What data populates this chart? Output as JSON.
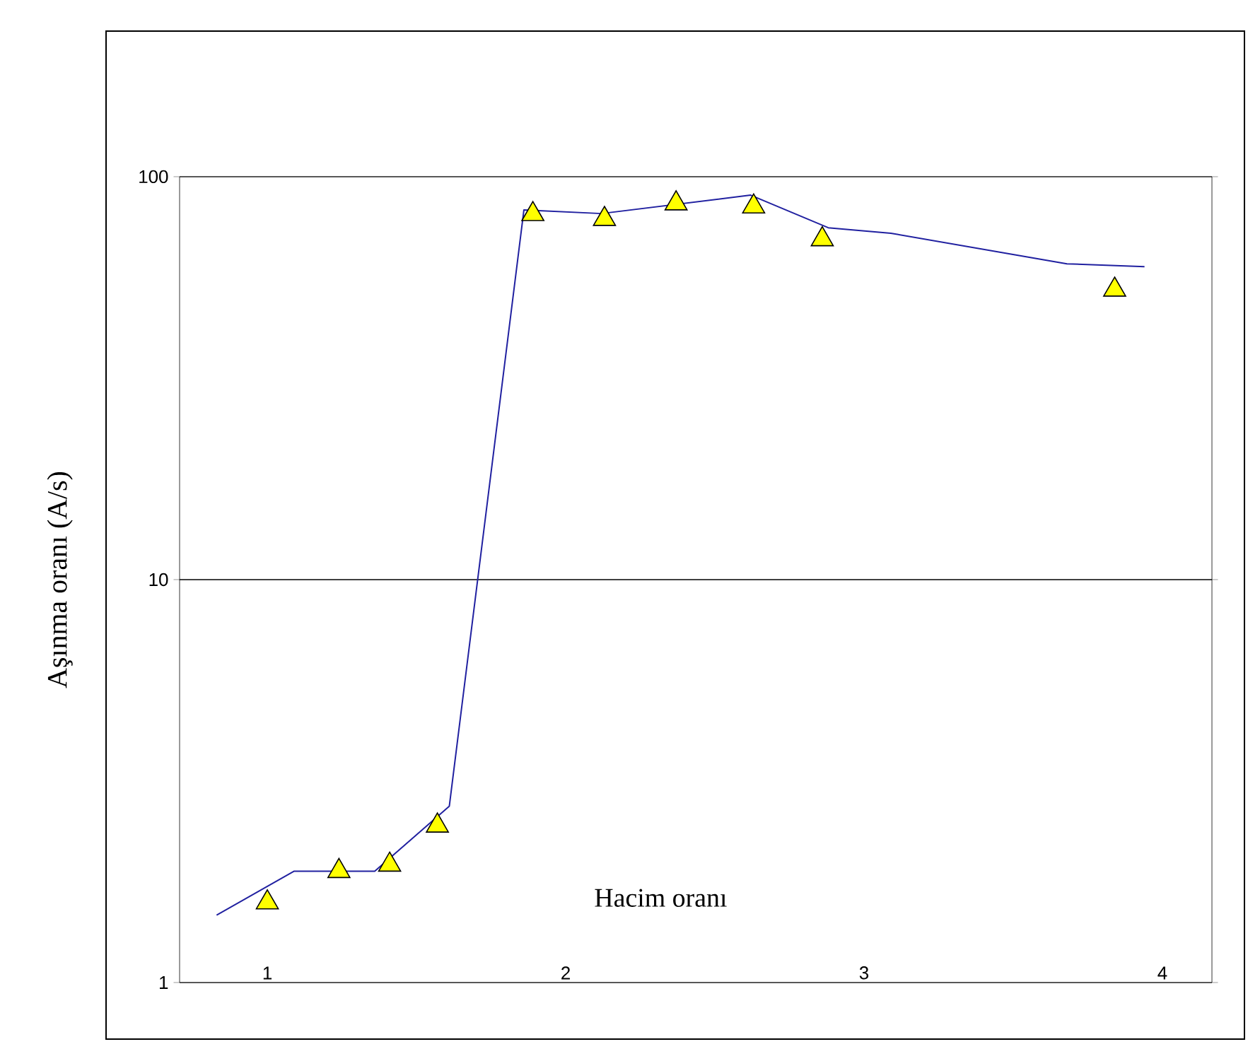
{
  "chart_data": {
    "type": "line",
    "xlabel": "Hacim oranı",
    "ylabel": "Aşınma oranı (A/s)",
    "log": "y",
    "grid": "y",
    "xlim": [
      0.706,
      4.166
    ],
    "xticks": [
      1,
      2,
      3,
      4
    ],
    "ylim": [
      1,
      100
    ],
    "yticks": [
      1,
      10,
      100
    ],
    "series": [
      {
        "color": "#2020a0",
        "marker": "none",
        "x": [
          0.83,
          1.09,
          1.36,
          1.61,
          1.86,
          2.12,
          2.62,
          2.88,
          3.09,
          3.68,
          3.94
        ],
        "values": [
          1.47,
          1.89,
          1.89,
          2.74,
          82.7,
          81.0,
          90.0,
          74.7,
          72.4,
          60.8,
          59.8
        ]
      },
      {
        "type": "scatter",
        "color": "#ffff00",
        "marker": "triangle",
        "x": [
          1.0,
          1.24,
          1.41,
          1.57,
          1.89,
          2.13,
          2.37,
          2.63,
          2.86,
          3.84
        ],
        "values": [
          1.58,
          1.89,
          1.96,
          2.45,
          80.7,
          78.5,
          85.8,
          84.3,
          69.9,
          52.4
        ]
      }
    ]
  }
}
